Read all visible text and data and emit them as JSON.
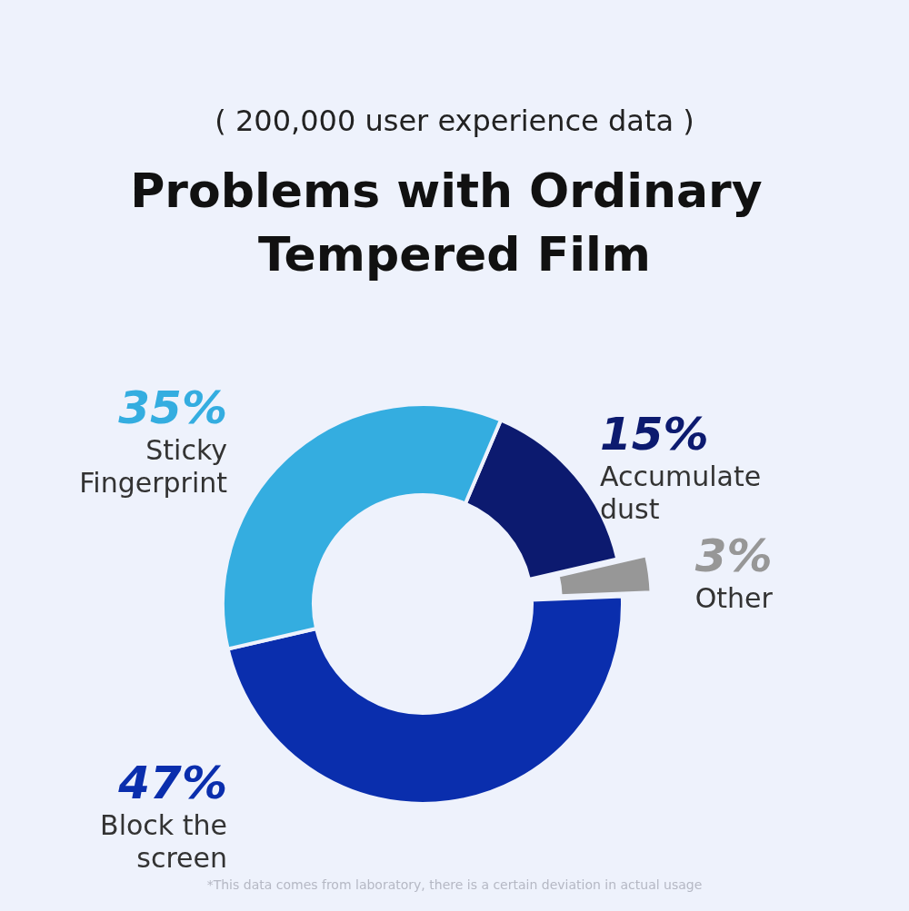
{
  "chart_data": {
    "type": "donut",
    "title": "Problems with Ordinary Tempered Film",
    "subtitle": "( 200,000 user experience data )",
    "categories": [
      "Accumulate dust",
      "Other",
      "Block the screen",
      "Sticky Fingerprint"
    ],
    "values": [
      15,
      3,
      47,
      35
    ],
    "colors": [
      "#0c1a6f",
      "#979797",
      "#0a2ead",
      "#34ade0"
    ],
    "value_labels": [
      "15%",
      "3%",
      "47%",
      "35%"
    ],
    "annotations": [
      "*This data comes from laboratory, there is a certain deviation in actual usage"
    ]
  }
}
